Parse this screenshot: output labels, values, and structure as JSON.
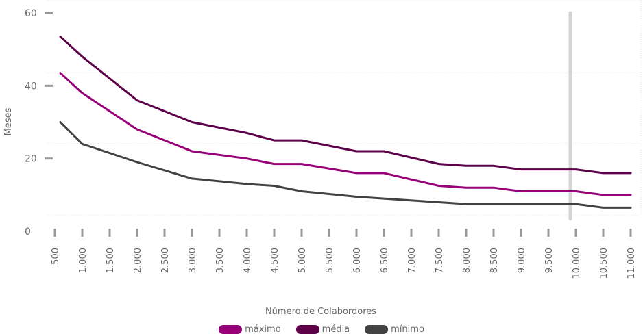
{
  "chart_data": {
    "type": "line",
    "xlabel": "Número de Colabordores",
    "ylabel": "Meses",
    "ylim": [
      0,
      60
    ],
    "yticks": [
      0,
      20,
      40,
      60
    ],
    "xlim": [
      500,
      11000
    ],
    "x_tick_labels": [
      "500",
      "1.000",
      "1.500",
      "2.000",
      "2.500",
      "3.000",
      "3.500",
      "4.000",
      "4.500",
      "5.000",
      "5.500",
      "6.000",
      "6.500",
      "7.000",
      "7.500",
      "8.000",
      "8.500",
      "9.000",
      "9.500",
      "10.000",
      "10.500",
      "11.000"
    ],
    "grid": true,
    "legend_position": "bottom",
    "highlight_x": 10000,
    "series": [
      {
        "name": "máximo",
        "color": "#990078",
        "x": [
          600,
          1000,
          2000,
          3000,
          4000,
          4500,
          5000,
          6000,
          6500,
          7500,
          8000,
          8500,
          9000,
          9500,
          10000,
          10500,
          11000
        ],
        "y": [
          43.5,
          38,
          28,
          22,
          20,
          18.5,
          18.5,
          16,
          16,
          12.5,
          12,
          12,
          11,
          11,
          11,
          10,
          10
        ]
      },
      {
        "name": "média",
        "color": "#5c0047",
        "x": [
          600,
          1000,
          2000,
          3000,
          4000,
          4500,
          5000,
          6000,
          6500,
          7500,
          8000,
          8500,
          9000,
          9500,
          10000,
          10500,
          11000
        ],
        "y": [
          53.5,
          48,
          36,
          30,
          27,
          25,
          25,
          22,
          22,
          18.5,
          18,
          18,
          17,
          17,
          17,
          16,
          16
        ]
      },
      {
        "name": "mínimo",
        "color": "#424242",
        "x": [
          600,
          1000,
          2000,
          3000,
          4000,
          4500,
          5000,
          6000,
          6500,
          7500,
          8000,
          8500,
          9000,
          9500,
          10000,
          10500,
          11000
        ],
        "y": [
          30,
          24,
          19,
          14.5,
          13,
          12.5,
          11,
          9.5,
          9,
          8,
          7.5,
          7.5,
          7.5,
          7.5,
          7.5,
          6.5,
          6.5
        ]
      }
    ]
  }
}
